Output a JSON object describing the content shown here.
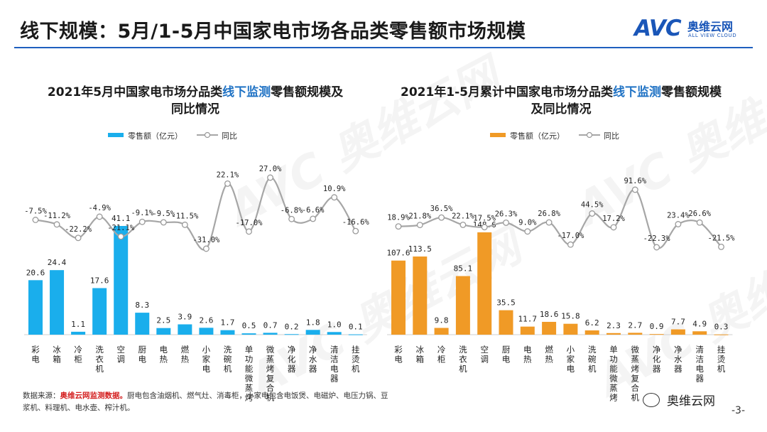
{
  "header": {
    "title": "线下规模：5月/1-5月中国家电市场各品类零售额市场规模"
  },
  "logo": {
    "brand": "AVC",
    "cn": "奥维云网",
    "en": "ALL VIEW CLOUD"
  },
  "watermark": {
    "text": "AVC 奥维云网"
  },
  "colors": {
    "may_bar": "#1aaeec",
    "ytd_bar": "#f09a26",
    "yoy_line": "#a6a6a6",
    "highlight": "#1f72c4",
    "rule": "#1f5fbf"
  },
  "chart_data": [
    {
      "type": "bar",
      "title_parts": [
        "2021年5月中国家电市场分品类",
        "线下监测",
        "零售额规模及同比情况"
      ],
      "categories": [
        "彩电",
        "冰箱",
        "冷柜",
        "洗衣机",
        "空调",
        "厨电",
        "电热",
        "燃热",
        "小家电",
        "洗碗机",
        "单功能微蒸烤",
        "微蒸烤复合机",
        "净化器",
        "净水器",
        "清洁电器",
        "挂烫机"
      ],
      "series": [
        {
          "name": "零售额（亿元）",
          "kind": "bar",
          "values": [
            20.6,
            24.4,
            1.1,
            17.6,
            41.1,
            8.3,
            2.5,
            3.9,
            2.6,
            1.7,
            0.5,
            0.7,
            0.2,
            1.8,
            1.0,
            0.1
          ],
          "labels": [
            "20.6",
            "24.4",
            "1.1",
            "17.6",
            "41.1",
            "8.3",
            "2.5",
            "3.9",
            "2.6",
            "1.7",
            "0.5",
            "0.7",
            "0.2",
            "1.8",
            "1.0",
            "0.1"
          ]
        },
        {
          "name": "同比",
          "kind": "line",
          "values": [
            -7.5,
            -11.2,
            -22.2,
            -4.9,
            -21.1,
            -9.1,
            -9.5,
            -11.5,
            -31.0,
            22.1,
            -17.0,
            27.0,
            -6.8,
            -6.6,
            10.9,
            -16.6
          ],
          "labels": [
            "-7.5%",
            "-11.2%",
            "-22.2%",
            "-4.9%",
            "-21.1%",
            "-9.1%",
            "-9.5%",
            "-11.5%",
            "-31.0%",
            "22.1%",
            "-17.0%",
            "27.0%",
            "-6.8%",
            "-6.6%",
            "10.9%",
            "-16.6%"
          ]
        }
      ],
      "legend": "top"
    },
    {
      "type": "bar",
      "title_parts": [
        "2021年1-5月累计中国家电市场分品类",
        "线下监测",
        "零售额规模及同比情况"
      ],
      "categories": [
        "彩电",
        "冰箱",
        "冷柜",
        "洗衣机",
        "空调",
        "厨电",
        "电热",
        "燃热",
        "小家电",
        "洗碗机",
        "单功能微蒸烤",
        "微蒸烤复合机",
        "净化器",
        "净水器",
        "清洁电器",
        "挂烫机"
      ],
      "series": [
        {
          "name": "零售额（亿元）",
          "kind": "bar",
          "values": [
            107.6,
            113.5,
            9.8,
            85.1,
            148.6,
            35.5,
            11.7,
            18.6,
            15.8,
            6.2,
            2.3,
            2.7,
            0.9,
            7.7,
            4.9,
            0.3
          ],
          "labels": [
            "107.6",
            "113.5",
            "9.8",
            "85.1",
            "148.6",
            "35.5",
            "11.7",
            "18.6",
            "15.8",
            "6.2",
            "2.3",
            "2.7",
            "0.9",
            "7.7",
            "4.9",
            "0.3"
          ]
        },
        {
          "name": "同比",
          "kind": "line",
          "values": [
            18.9,
            21.8,
            36.5,
            22.1,
            17.5,
            26.3,
            9.0,
            26.8,
            -17.0,
            44.5,
            17.2,
            91.6,
            -22.3,
            23.4,
            26.6,
            -21.5
          ],
          "labels": [
            "18.9%",
            "21.8%",
            "36.5%",
            "22.1%",
            "17.5%",
            "26.3%",
            "9.0%",
            "26.8%",
            "-17.0%",
            "44.5%",
            "17.2%",
            "91.6%",
            "-22.3%",
            "23.4%",
            "26.6%",
            "-21.5%"
          ]
        }
      ],
      "legend": "top"
    }
  ],
  "footnote": {
    "prefix": "数据来源：",
    "source": "奥维云网监测数据。",
    "note": "厨电包含油烟机、燃气灶、消毒柜，小家电包含电饭煲、电磁炉、电压力锅、豆浆机、料理机、电水壶、榨汁机。"
  },
  "wechat": {
    "label": "奥维云网"
  },
  "page": {
    "number": "-3-"
  }
}
